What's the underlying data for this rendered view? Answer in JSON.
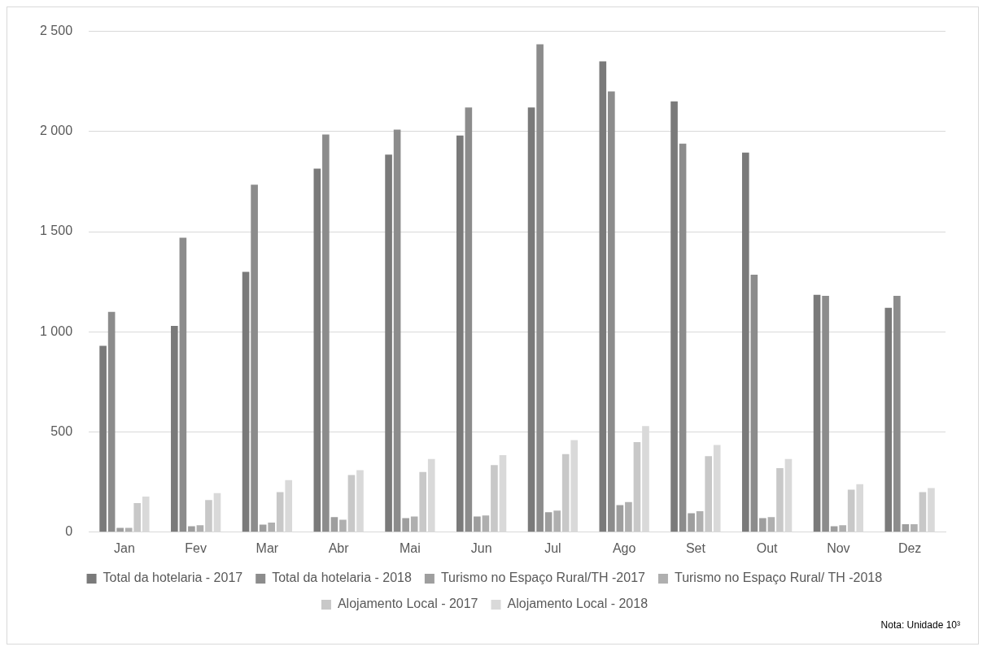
{
  "chart_data": {
    "type": "bar",
    "categories": [
      "Jan",
      "Fev",
      "Mar",
      "Abr",
      "Mai",
      "Jun",
      "Jul",
      "Ago",
      "Set",
      "Out",
      "Nov",
      "Dez"
    ],
    "series": [
      {
        "name": "Total da hotelaria - 2017",
        "color": "#7a7a7a",
        "values": [
          930,
          1030,
          1300,
          1815,
          1885,
          1980,
          2120,
          2350,
          2150,
          1895,
          1185,
          1120
        ]
      },
      {
        "name": "Total da hotelaria - 2018",
        "color": "#8c8c8c",
        "values": [
          1100,
          1470,
          1735,
          1985,
          2010,
          2120,
          2435,
          2200,
          1940,
          1285,
          1180,
          1180
        ]
      },
      {
        "name": "Turismo no Espaço Rural/TH -2017",
        "color": "#9e9e9e",
        "values": [
          22,
          30,
          38,
          75,
          70,
          78,
          100,
          135,
          95,
          70,
          30,
          40
        ]
      },
      {
        "name": "Turismo no Espaço Rural/ TH -2018",
        "color": "#afafaf",
        "values": [
          22,
          35,
          48,
          62,
          78,
          83,
          108,
          150,
          105,
          75,
          35,
          40
        ]
      },
      {
        "name": "Alojamento Local - 2017",
        "color": "#c8c8c8",
        "values": [
          145,
          160,
          200,
          285,
          300,
          335,
          390,
          450,
          380,
          320,
          212,
          200
        ]
      },
      {
        "name": "Alojamento Local - 2018",
        "color": "#d9d9d9",
        "values": [
          178,
          195,
          260,
          310,
          365,
          385,
          460,
          530,
          435,
          365,
          240,
          220
        ]
      }
    ],
    "ylim": [
      0,
      2500
    ],
    "yticks": [
      {
        "value": 0,
        "label": "0"
      },
      {
        "value": 500,
        "label": "500"
      },
      {
        "value": 1000,
        "label": "1 000"
      },
      {
        "value": 1500,
        "label": "1 500"
      },
      {
        "value": 2000,
        "label": "2 000"
      },
      {
        "value": 2500,
        "label": "2 500"
      }
    ],
    "grid": "y",
    "legend": "bottom",
    "annotations": [
      "Nota: Unidade 10³"
    ]
  }
}
